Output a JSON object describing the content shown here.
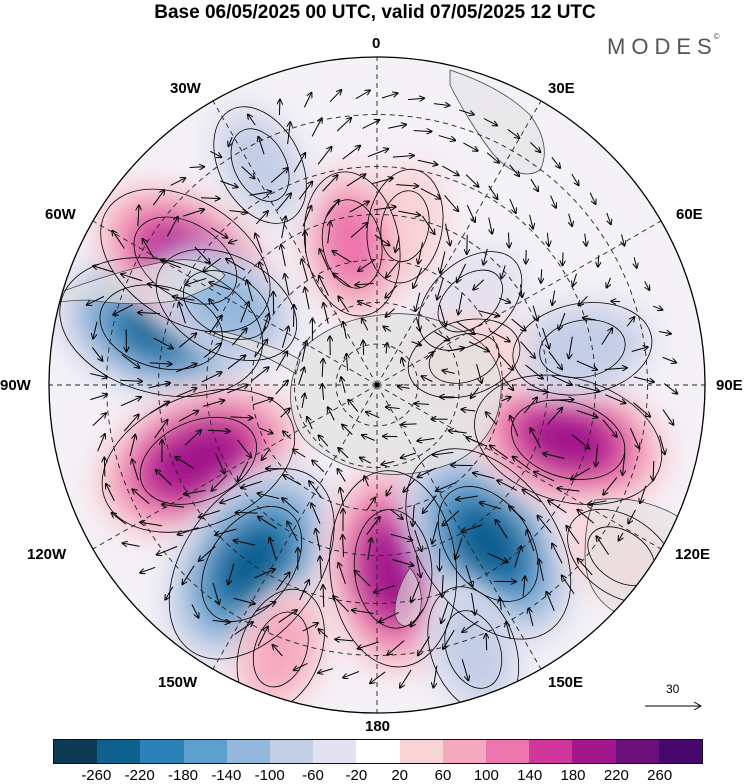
{
  "title": "Base 06/05/2025 00 UTC, valid 07/05/2025 12 UTC",
  "brand": {
    "text": "MODES",
    "mark": "©"
  },
  "longitude_labels": {
    "lon_0": "0",
    "lon_30e": "30E",
    "lon_60e": "60E",
    "lon_90e": "90E",
    "lon_120e": "120E",
    "lon_150e": "150E",
    "lon_180": "180",
    "lon_150w": "150W",
    "lon_120w": "120W",
    "lon_90w": "90W",
    "lon_60w": "60W",
    "lon_30w": "30W"
  },
  "reference_vector": {
    "label": "30"
  },
  "colorbar": {
    "ticks": [
      "-260",
      "-220",
      "-180",
      "-140",
      "-100",
      "-60",
      "-20",
      "20",
      "60",
      "100",
      "140",
      "180",
      "220",
      "260"
    ],
    "colors": [
      "#0d3a57",
      "#0f5f8f",
      "#2a82b8",
      "#5c9fcc",
      "#93b8db",
      "#c2cde6",
      "#e4e2f0",
      "#ffffff",
      "#f9d4d7",
      "#f5a9bf",
      "#ec75ad",
      "#d1369b",
      "#a3168c",
      "#6b0f7a",
      "#48086b"
    ]
  },
  "anomaly_centers": [
    {
      "lon": -75,
      "colat": 51,
      "value": -240
    },
    {
      "lon": -113,
      "colat": 45,
      "value": 230
    },
    {
      "lon": -145,
      "colat": 50,
      "value": -250
    },
    {
      "lon": 175,
      "colat": 43,
      "value": 220
    },
    {
      "lon": 145,
      "colat": 45,
      "value": -250
    },
    {
      "lon": 106,
      "colat": 46,
      "value": 210
    },
    {
      "lon": 80,
      "colat": 48,
      "value": -110
    },
    {
      "lon": 48,
      "colat": 30,
      "value": -70
    },
    {
      "lon": 10,
      "colat": 38,
      "value": 60
    },
    {
      "lon": -10,
      "colat": 34,
      "value": 120
    },
    {
      "lon": -28,
      "colat": 56,
      "value": -80
    },
    {
      "lon": -57,
      "colat": 52,
      "value": 200
    },
    {
      "lon": -62,
      "colat": 40,
      "value": -130
    },
    {
      "lon": 73,
      "colat": 22,
      "value": 60
    },
    {
      "lon": 125,
      "colat": 65,
      "value": 70
    },
    {
      "lon": -160,
      "colat": 62,
      "value": 80
    },
    {
      "lon": 160,
      "colat": 62,
      "value": -90
    }
  ]
}
